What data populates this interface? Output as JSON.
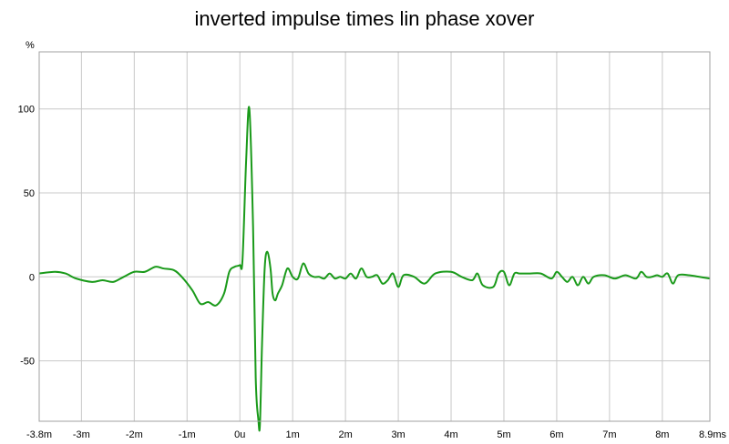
{
  "chart_data": {
    "type": "line",
    "title": "inverted impulse times lin phase xover",
    "ylabel": "%",
    "xunit": "ms",
    "xlim": [
      -3.8,
      8.9
    ],
    "ylim": [
      -86,
      134
    ],
    "grid": true,
    "x_ticks": [
      {
        "value": -3.8,
        "label": "-3.8m"
      },
      {
        "value": -3,
        "label": "-3m"
      },
      {
        "value": -2,
        "label": "-2m"
      },
      {
        "value": -1,
        "label": "-1m"
      },
      {
        "value": 0,
        "label": "0u"
      },
      {
        "value": 1,
        "label": "1m"
      },
      {
        "value": 2,
        "label": "2m"
      },
      {
        "value": 3,
        "label": "3m"
      },
      {
        "value": 4,
        "label": "4m"
      },
      {
        "value": 5,
        "label": "5m"
      },
      {
        "value": 6,
        "label": "6m"
      },
      {
        "value": 7,
        "label": "7m"
      },
      {
        "value": 8,
        "label": "8m"
      },
      {
        "value": 8.9,
        "label": "8.9ms"
      }
    ],
    "y_ticks": [
      {
        "value": 100,
        "label": "100"
      },
      {
        "value": 50,
        "label": "50"
      },
      {
        "value": 0,
        "label": "0"
      },
      {
        "value": -50,
        "label": "-50"
      }
    ],
    "series": [
      {
        "color": "#1a9a1a",
        "x": [
          -3.8,
          -3.5,
          -3.3,
          -3.1,
          -2.8,
          -2.6,
          -2.4,
          -2.2,
          -2.0,
          -1.8,
          -1.6,
          -1.45,
          -1.25,
          -1.1,
          -0.9,
          -0.75,
          -0.6,
          -0.45,
          -0.3,
          -0.2,
          -0.1,
          0.0,
          0.05,
          0.12,
          0.18,
          0.25,
          0.3,
          0.35,
          0.38,
          0.42,
          0.47,
          0.52,
          0.58,
          0.62,
          0.67,
          0.72,
          0.8,
          0.9,
          1.0,
          1.1,
          1.2,
          1.3,
          1.4,
          1.5,
          1.6,
          1.7,
          1.8,
          1.9,
          2.0,
          2.1,
          2.2,
          2.3,
          2.4,
          2.5,
          2.6,
          2.7,
          2.8,
          2.9,
          3.0,
          3.1,
          3.3,
          3.5,
          3.7,
          4.0,
          4.2,
          4.4,
          4.5,
          4.6,
          4.8,
          4.9,
          5.0,
          5.1,
          5.2,
          5.3,
          5.5,
          5.7,
          5.9,
          6.0,
          6.1,
          6.2,
          6.3,
          6.4,
          6.5,
          6.6,
          6.7,
          6.9,
          7.1,
          7.3,
          7.5,
          7.6,
          7.7,
          7.8,
          7.9,
          8.0,
          8.1,
          8.2,
          8.3,
          8.5,
          8.7,
          8.9
        ],
        "y": [
          2,
          3,
          2,
          -1,
          -3,
          -2,
          -3,
          0,
          3,
          3,
          6,
          5,
          4,
          0,
          -8,
          -16,
          -15,
          -17,
          -10,
          3,
          6,
          7,
          10,
          70,
          100,
          30,
          -60,
          -85,
          -88,
          -40,
          5,
          15,
          5,
          -10,
          -14,
          -10,
          -5,
          5,
          0,
          -1,
          8,
          2,
          0,
          0,
          -1,
          2,
          -1,
          0,
          -1,
          2,
          -1,
          5,
          0,
          0,
          1,
          -4,
          -2,
          2,
          -6,
          1,
          0,
          -4,
          2,
          3,
          0,
          -2,
          2,
          -5,
          -6,
          2,
          3,
          -5,
          2,
          2,
          2,
          2,
          -1,
          3,
          0,
          -3,
          0,
          -5,
          0,
          -4,
          0,
          1,
          -1,
          1,
          -1,
          3,
          0,
          0,
          1,
          0,
          2,
          -4,
          1,
          1,
          0,
          -1
        ]
      }
    ]
  }
}
